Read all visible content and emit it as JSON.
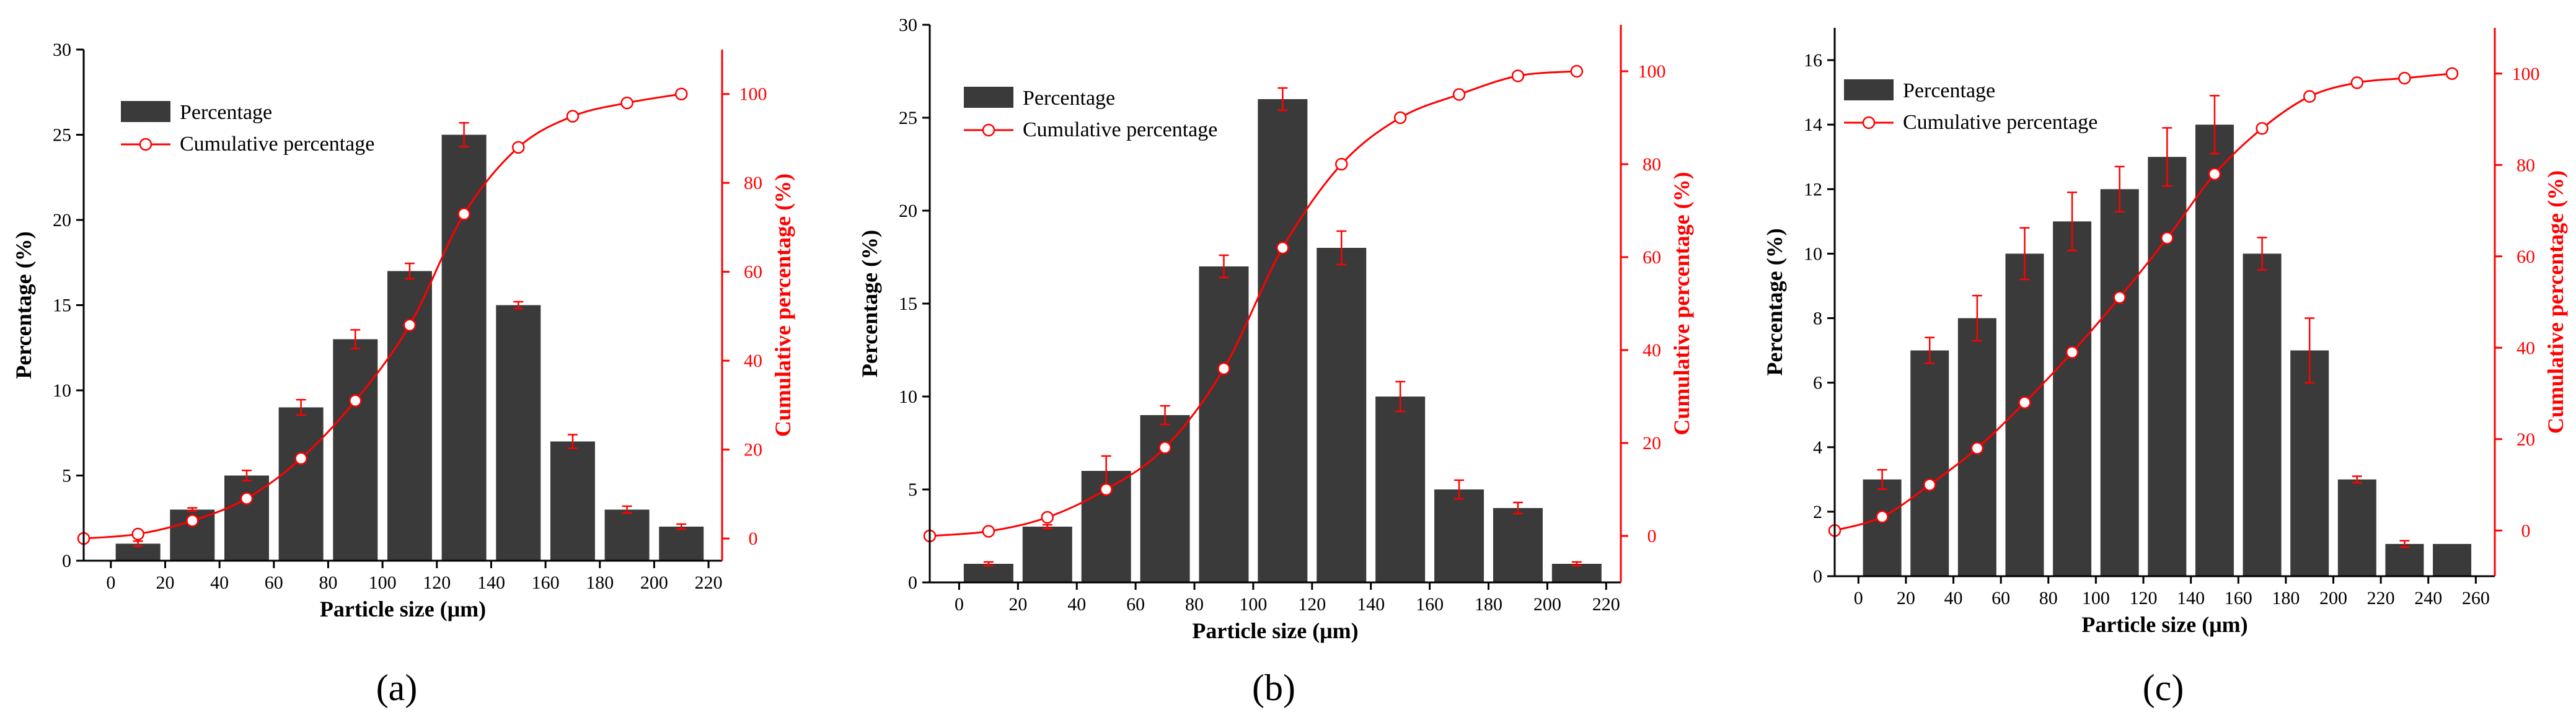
{
  "colors": {
    "bar": "#3a3a3a",
    "cumulative": "#ff0000",
    "axis": "#000000"
  },
  "legend": {
    "percentage": "Percentage",
    "cumulative": "Cumulative percentage"
  },
  "chart_data": [
    {
      "panel": "a",
      "panel_label": "(a)",
      "type": "bar",
      "xlabel": "Particle size (μm)",
      "ylabel": "Percentage (%)",
      "y2label": "Cumulative percentage (%)",
      "xlim": [
        -10,
        225
      ],
      "ylim": [
        0,
        30
      ],
      "y2lim": [
        -5,
        110
      ],
      "xticks": [
        0,
        20,
        40,
        60,
        80,
        100,
        120,
        140,
        160,
        180,
        200,
        220
      ],
      "yticks": [
        0,
        5,
        10,
        15,
        20,
        25,
        30
      ],
      "y2ticks": [
        0,
        20,
        40,
        60,
        80,
        100
      ],
      "bars": {
        "name": "Percentage",
        "x": [
          10,
          30,
          50,
          70,
          90,
          110,
          130,
          150,
          170,
          190,
          210
        ],
        "values": [
          1,
          3,
          5,
          9,
          13,
          17,
          25,
          15,
          7,
          3,
          2
        ],
        "errors": [
          0.15,
          0.1,
          0.3,
          0.45,
          0.55,
          0.45,
          0.7,
          0.2,
          0.4,
          0.2,
          0.15
        ]
      },
      "cumulative": {
        "name": "Cumulative percentage",
        "x": [
          -10,
          10,
          30,
          50,
          70,
          90,
          110,
          130,
          150,
          170,
          190,
          210
        ],
        "values": [
          0,
          1,
          4,
          9,
          18,
          31,
          48,
          73,
          88,
          95,
          98,
          100
        ]
      }
    },
    {
      "panel": "b",
      "panel_label": "(b)",
      "type": "bar",
      "xlabel": "Particle size (μm)",
      "ylabel": "Percentage (%)",
      "y2label": "Cumulative percentage (%)",
      "xlim": [
        -10,
        225
      ],
      "ylim": [
        0,
        30
      ],
      "y2lim": [
        -10,
        110
      ],
      "xticks": [
        0,
        20,
        40,
        60,
        80,
        100,
        120,
        140,
        160,
        180,
        200,
        220
      ],
      "yticks": [
        0,
        5,
        10,
        15,
        20,
        25,
        30
      ],
      "y2ticks": [
        0,
        20,
        40,
        60,
        80,
        100
      ],
      "bars": {
        "name": "Percentage",
        "x": [
          10,
          30,
          50,
          70,
          90,
          110,
          130,
          150,
          170,
          190,
          210
        ],
        "values": [
          1,
          3,
          6,
          9,
          17,
          26,
          18,
          10,
          5,
          4,
          1
        ],
        "errors": [
          0.1,
          0.1,
          0.8,
          0.5,
          0.6,
          0.6,
          0.9,
          0.8,
          0.5,
          0.3,
          0.1
        ]
      },
      "cumulative": {
        "name": "Cumulative percentage",
        "x": [
          -10,
          10,
          30,
          50,
          70,
          90,
          110,
          130,
          150,
          170,
          190,
          210
        ],
        "values": [
          0,
          1,
          4,
          10,
          19,
          36,
          62,
          80,
          90,
          95,
          99,
          100
        ]
      }
    },
    {
      "panel": "c",
      "panel_label": "(c)",
      "type": "bar",
      "xlabel": "Particle size (μm)",
      "ylabel": "Percentage (%)",
      "y2label": "Cumulative percentage (%)",
      "xlim": [
        -10,
        268
      ],
      "ylim": [
        0,
        17
      ],
      "y2lim": [
        -10,
        110
      ],
      "xticks": [
        0,
        20,
        40,
        60,
        80,
        100,
        120,
        140,
        160,
        180,
        200,
        220,
        240,
        260
      ],
      "yticks": [
        0,
        2,
        4,
        6,
        8,
        10,
        12,
        14,
        16
      ],
      "y2ticks": [
        0,
        20,
        40,
        60,
        80,
        100
      ],
      "bars": {
        "name": "Percentage",
        "x": [
          10,
          30,
          50,
          70,
          90,
          110,
          130,
          150,
          170,
          190,
          210,
          230,
          250
        ],
        "values": [
          3,
          7,
          8,
          10,
          11,
          12,
          13,
          14,
          10,
          7,
          3,
          1,
          1
        ],
        "errors": [
          0.3,
          0.4,
          0.7,
          0.8,
          0.9,
          0.7,
          0.9,
          0.9,
          0.5,
          1.0,
          0.1,
          0.1,
          0
        ]
      },
      "cumulative": {
        "name": "Cumulative percentage",
        "x": [
          -10,
          10,
          30,
          50,
          70,
          90,
          110,
          130,
          150,
          170,
          190,
          210,
          230,
          250
        ],
        "values": [
          0,
          3,
          10,
          18,
          28,
          39,
          51,
          64,
          78,
          88,
          95,
          98,
          99,
          100
        ]
      }
    }
  ]
}
